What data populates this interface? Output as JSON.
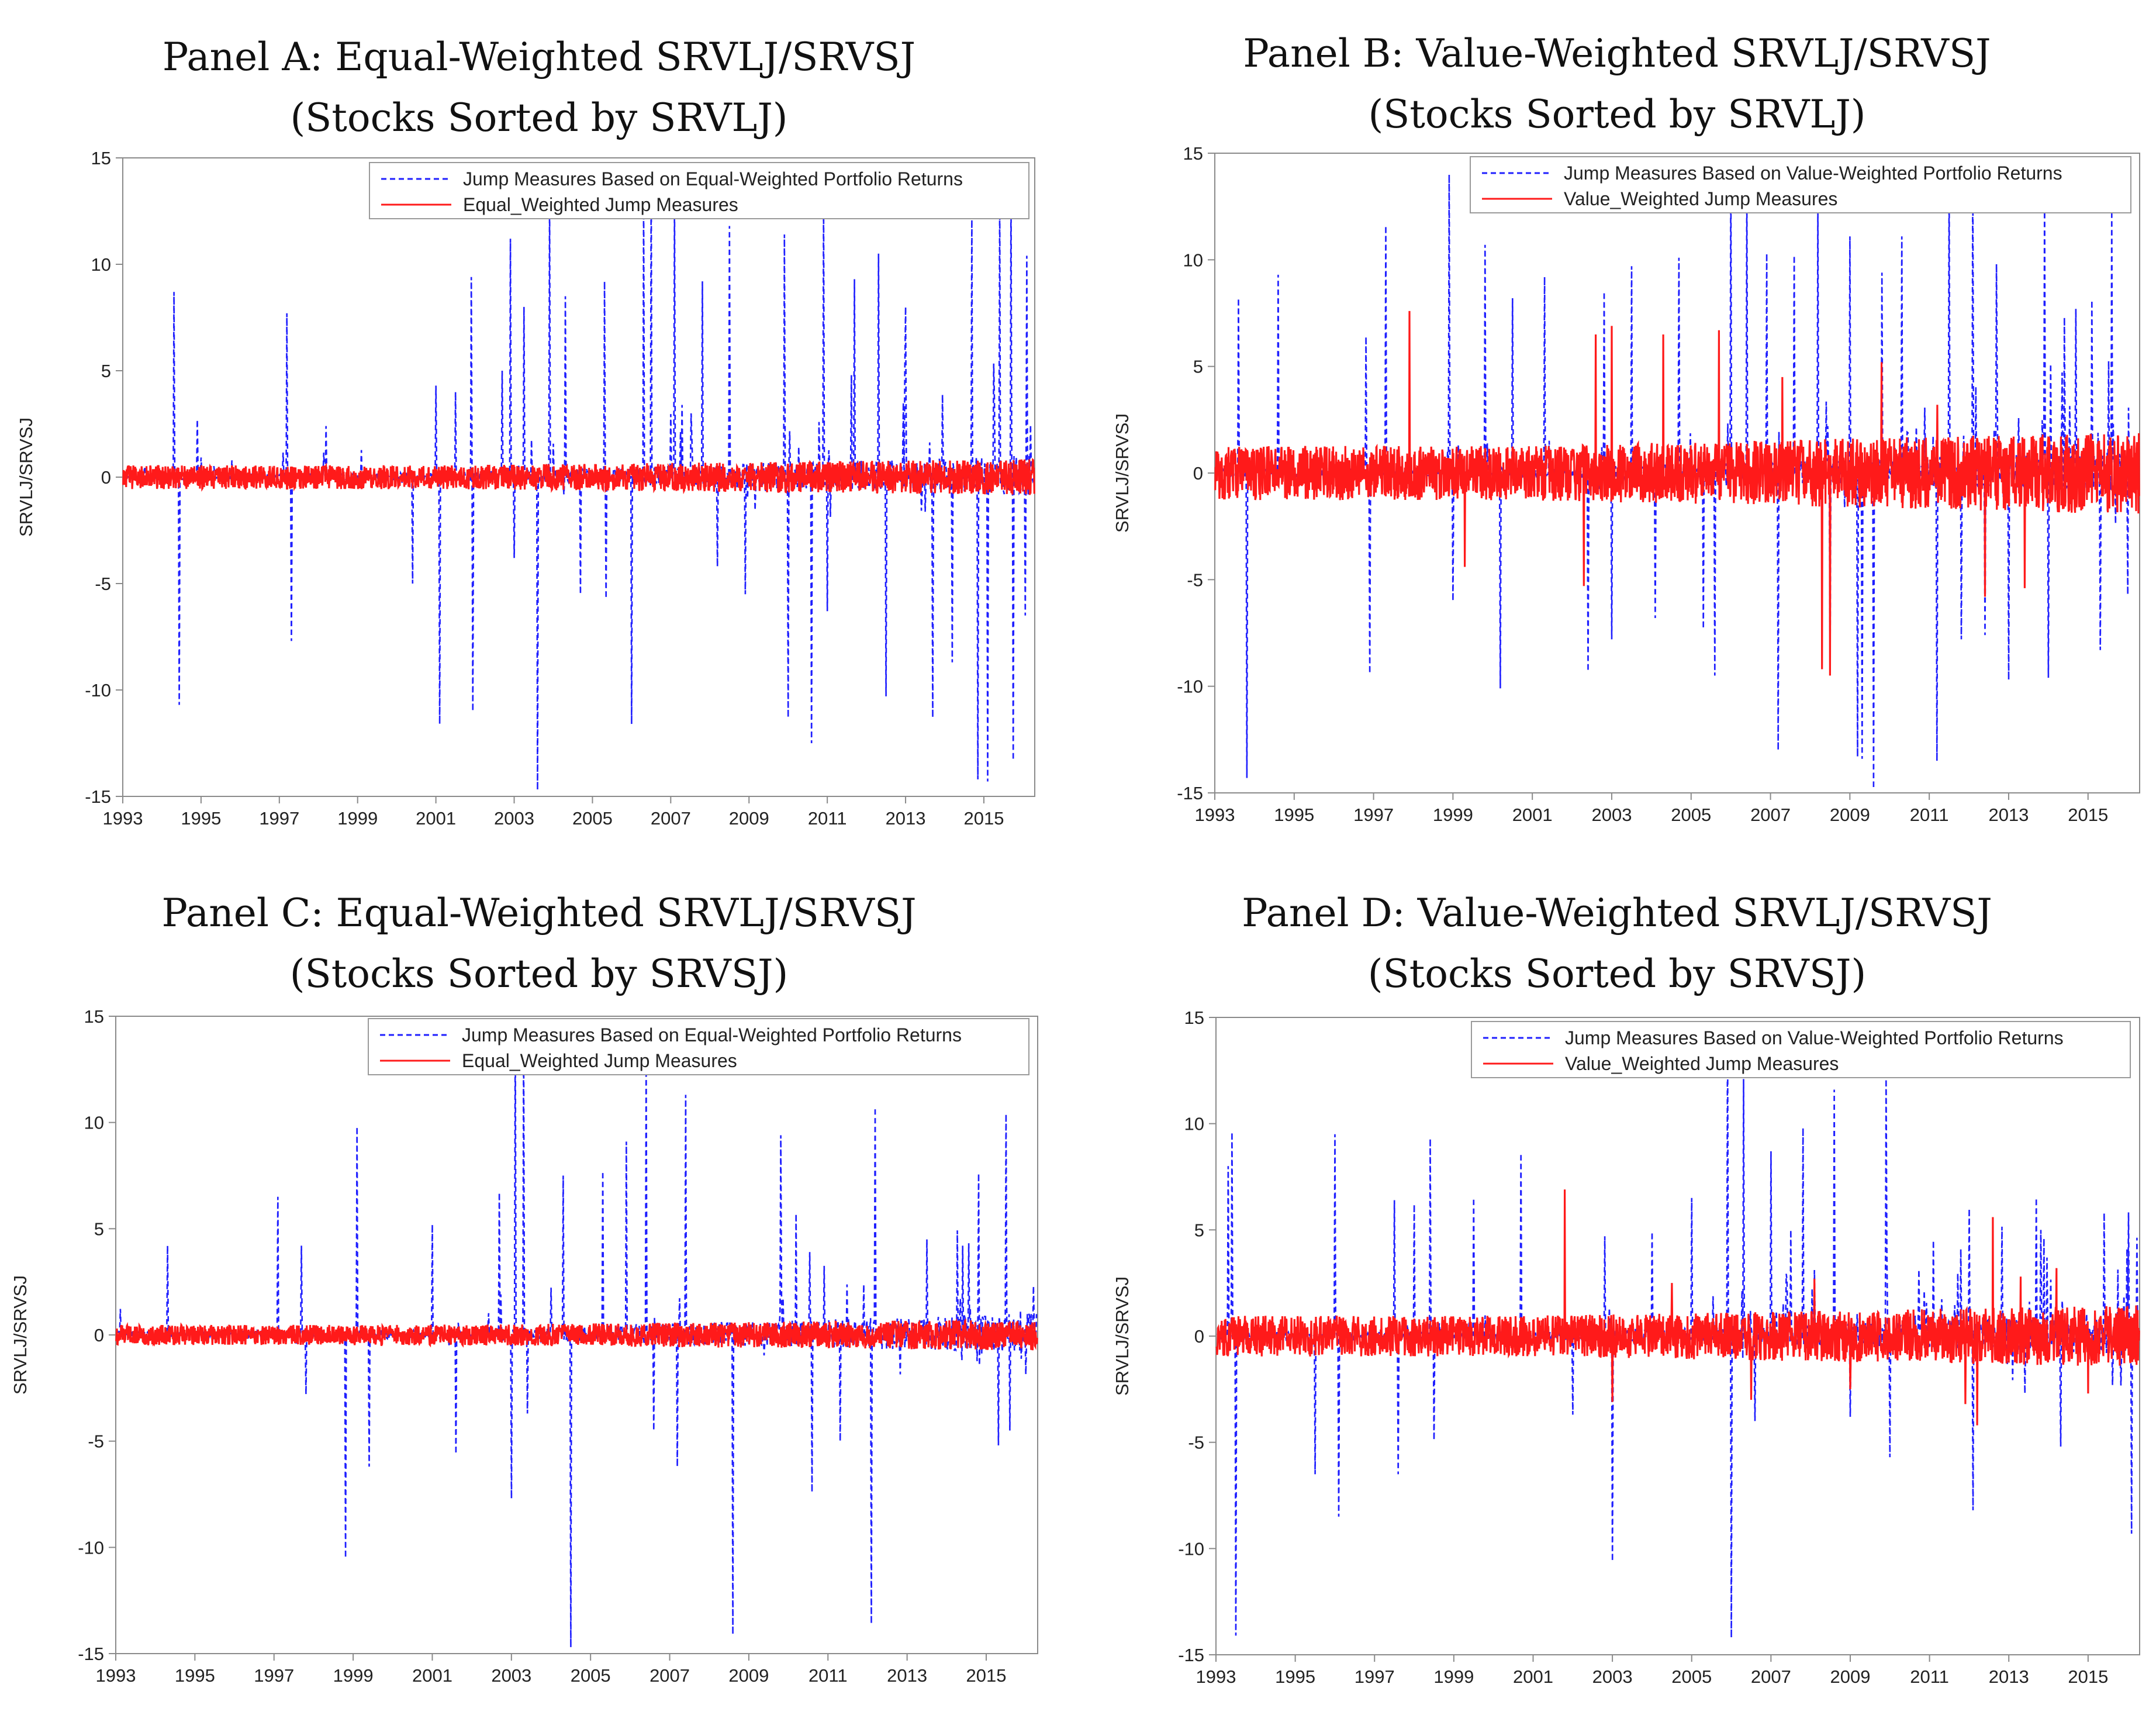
{
  "colors": {
    "blue": "#1f1fff",
    "red": "#ff1a1a",
    "axis": "#8a8a8a"
  },
  "chart_data": [
    {
      "panel": "A",
      "type": "line",
      "title": "Panel A: Equal-Weighted SRVLJ/SRVSJ",
      "subtitle": "(Stocks Sorted by SRVLJ)",
      "ylabel": "SRVLJ/SRVSJ",
      "xlabel": "",
      "ylim": [
        -15,
        15
      ],
      "xlim": [
        1993,
        2016.3
      ],
      "yticks": [
        "15",
        "10",
        "5",
        "0",
        "-5",
        "-10",
        "-15"
      ],
      "xticks": [
        "1993",
        "1995",
        "1997",
        "1999",
        "2001",
        "2003",
        "2005",
        "2007",
        "2009",
        "2011",
        "2013",
        "2015"
      ],
      "legend": [
        "Jump Measures Based on Equal-Weighted Portfolio Returns",
        "Equal_Weighted Jump Measures"
      ],
      "series": [
        {
          "name": "Jump Measures Based on Equal-Weighted Portfolio Returns",
          "style": "dashed",
          "color": "blue",
          "spikes": [
            [
              1994.3,
              8.7
            ],
            [
              1994.45,
              -10.7
            ],
            [
              1994.9,
              2.7
            ],
            [
              1997.2,
              7.7
            ],
            [
              1997.3,
              -7.7
            ],
            [
              1998.2,
              2.4
            ],
            [
              2000.4,
              -5
            ],
            [
              2001.0,
              4.3
            ],
            [
              2001.1,
              -11.6
            ],
            [
              2001.5,
              4
            ],
            [
              2001.9,
              9.4
            ],
            [
              2001.95,
              -11
            ],
            [
              2002.7,
              5
            ],
            [
              2002.9,
              11.2
            ],
            [
              2003.0,
              -3.8
            ],
            [
              2003.25,
              8
            ],
            [
              2003.6,
              -14.7
            ],
            [
              2003.9,
              13
            ],
            [
              2004.3,
              8.5
            ],
            [
              2004.7,
              -5.5
            ],
            [
              2005.3,
              9.2
            ],
            [
              2005.35,
              -5.7
            ],
            [
              2006.0,
              -11.6
            ],
            [
              2006.3,
              13.1
            ],
            [
              2006.5,
              14.5
            ],
            [
              2007.1,
              13
            ],
            [
              2007.8,
              9.2
            ],
            [
              2008.2,
              -4.2
            ],
            [
              2008.5,
              11.8
            ],
            [
              2008.9,
              -5.5
            ],
            [
              2009.9,
              11.4
            ],
            [
              2010.0,
              -11.3
            ],
            [
              2010.6,
              -12.5
            ],
            [
              2010.9,
              12.9
            ],
            [
              2011.0,
              -6.3
            ],
            [
              2011.7,
              9.3
            ],
            [
              2012.3,
              10.5
            ],
            [
              2012.5,
              -10.3
            ],
            [
              2013.0,
              8
            ],
            [
              2013.7,
              -11.3
            ],
            [
              2014.2,
              -8.7
            ],
            [
              2014.7,
              12.3
            ],
            [
              2014.85,
              -14.2
            ],
            [
              2015.1,
              -14.3
            ],
            [
              2015.4,
              13.1
            ],
            [
              2015.7,
              13.4
            ],
            [
              2015.75,
              -13.3
            ],
            [
              2016.1,
              10.4
            ],
            [
              2016.05,
              -6.5
            ]
          ]
        },
        {
          "name": "Equal_Weighted Jump Measures",
          "style": "solid",
          "color": "red",
          "band": 0.7
        }
      ]
    },
    {
      "panel": "B",
      "type": "line",
      "title": "Panel B: Value-Weighted SRVLJ/SRVSJ",
      "subtitle": "(Stocks Sorted by SRVLJ)",
      "ylabel": "SRVLJ/SRVSJ",
      "xlabel": "",
      "ylim": [
        -15,
        15
      ],
      "xlim": [
        1993,
        2016.3
      ],
      "yticks": [
        "15",
        "10",
        "5",
        "0",
        "-5",
        "-10",
        "-15"
      ],
      "xticks": [
        "1993",
        "1995",
        "1997",
        "1999",
        "2001",
        "2003",
        "2005",
        "2007",
        "2009",
        "2011",
        "2013",
        "2015"
      ],
      "legend": [
        "Jump Measures Based on Value-Weighted Portfolio Returns",
        "Value_Weighted Jump Measures"
      ],
      "series": [
        {
          "name": "Jump Measures Based on Value-Weighted Portfolio Returns",
          "style": "dashed",
          "color": "blue",
          "spikes": [
            [
              1993.6,
              8.2
            ],
            [
              1993.8,
              -14.3
            ],
            [
              1994.6,
              9.3
            ],
            [
              1996.8,
              6.4
            ],
            [
              1996.9,
              -9.4
            ],
            [
              1997.3,
              11.6
            ],
            [
              1998.9,
              14
            ],
            [
              1999.0,
              -6
            ],
            [
              1999.8,
              10.7
            ],
            [
              2000.2,
              -10.1
            ],
            [
              2000.5,
              8.2
            ],
            [
              2001.3,
              9.2
            ],
            [
              2002.4,
              -9.3
            ],
            [
              2002.8,
              8.5
            ],
            [
              2003.0,
              -7.8
            ],
            [
              2003.5,
              9.7
            ],
            [
              2004.1,
              -6.8
            ],
            [
              2004.7,
              10.1
            ],
            [
              2005.3,
              -7.3
            ],
            [
              2005.6,
              -9.5
            ],
            [
              2006.0,
              14.2
            ],
            [
              2006.4,
              13.2
            ],
            [
              2006.9,
              10.3
            ],
            [
              2007.2,
              -13
            ],
            [
              2007.6,
              10.2
            ],
            [
              2008.2,
              12.4
            ],
            [
              2008.5,
              -9
            ],
            [
              2009.0,
              11.1
            ],
            [
              2009.2,
              -13.3
            ],
            [
              2009.3,
              -13.4
            ],
            [
              2009.6,
              -14.8
            ],
            [
              2009.8,
              9.4
            ],
            [
              2010.3,
              11.1
            ],
            [
              2011.2,
              -13.5
            ],
            [
              2011.5,
              13.6
            ],
            [
              2011.8,
              -7.8
            ],
            [
              2012.1,
              14.3
            ],
            [
              2012.4,
              -7.6
            ],
            [
              2012.7,
              9.8
            ],
            [
              2013.0,
              -9.7
            ],
            [
              2013.9,
              13.1
            ],
            [
              2014.0,
              -9.6
            ],
            [
              2014.4,
              7.3
            ],
            [
              2014.7,
              7.7
            ],
            [
              2015.1,
              8.1
            ],
            [
              2015.3,
              -8.3
            ],
            [
              2015.6,
              12.3
            ],
            [
              2016.0,
              -5.7
            ]
          ]
        },
        {
          "name": "Value_Weighted Jump Measures",
          "style": "solid",
          "color": "red",
          "band": 1.6,
          "spikes": [
            [
              1997.9,
              7.6
            ],
            [
              1999.3,
              -4.4
            ],
            [
              2002.3,
              -5.3
            ],
            [
              2002.6,
              6.5
            ],
            [
              2003.0,
              6.9
            ],
            [
              2004.3,
              6.5
            ],
            [
              2005.7,
              6.7
            ],
            [
              2007.3,
              4.5
            ],
            [
              2008.3,
              -9.2
            ],
            [
              2008.5,
              -9.5
            ],
            [
              2009.8,
              5.2
            ],
            [
              2011.2,
              3.2
            ],
            [
              2012.4,
              -5.8
            ],
            [
              2013.4,
              -5.4
            ]
          ]
        }
      ]
    },
    {
      "panel": "C",
      "type": "line",
      "title": "Panel C: Equal-Weighted SRVLJ/SRVSJ",
      "subtitle": "(Stocks Sorted by SRVSJ)",
      "ylabel": "SRVLJ/SRVSJ",
      "xlabel": "",
      "ylim": [
        -15,
        15
      ],
      "xlim": [
        1993,
        2016.3
      ],
      "yticks": [
        "15",
        "10",
        "5",
        "0",
        "-5",
        "-10",
        "-15"
      ],
      "xticks": [
        "1993",
        "1995",
        "1997",
        "1999",
        "2001",
        "2003",
        "2005",
        "2007",
        "2009",
        "2011",
        "2013",
        "2015"
      ],
      "legend": [
        "Jump Measures Based on Equal-Weighted Portfolio Returns",
        "Equal_Weighted Jump Measures"
      ],
      "series": [
        {
          "name": "Jump Measures Based on Equal-Weighted Portfolio Returns",
          "style": "dashed",
          "color": "blue",
          "spikes": [
            [
              1994.3,
              4.2
            ],
            [
              1997.1,
              6.5
            ],
            [
              1997.7,
              4.2
            ],
            [
              1997.8,
              -2.8
            ],
            [
              1998.8,
              -10.5
            ],
            [
              1999.1,
              9.8
            ],
            [
              1999.4,
              -6.2
            ],
            [
              2001.0,
              5.2
            ],
            [
              2001.6,
              -5.6
            ],
            [
              2002.7,
              6.7
            ],
            [
              2003.0,
              -7.7
            ],
            [
              2003.1,
              14.6
            ],
            [
              2003.3,
              14.3
            ],
            [
              2003.4,
              -3.7
            ],
            [
              2004.3,
              7.5
            ],
            [
              2004.5,
              -14.7
            ],
            [
              2005.3,
              7.7
            ],
            [
              2005.9,
              9.1
            ],
            [
              2006.4,
              12.9
            ],
            [
              2006.6,
              -4.5
            ],
            [
              2007.2,
              -6.2
            ],
            [
              2007.4,
              11.3
            ],
            [
              2008.6,
              -14.1
            ],
            [
              2009.8,
              9.4
            ],
            [
              2010.2,
              5.7
            ],
            [
              2010.6,
              -7.4
            ],
            [
              2011.3,
              -5
            ],
            [
              2012.2,
              10.7
            ],
            [
              2012.1,
              -13.6
            ],
            [
              2013.5,
              4.5
            ],
            [
              2014.4,
              4.2
            ],
            [
              2014.8,
              7.6
            ],
            [
              2015.3,
              -5.2
            ],
            [
              2015.5,
              10.4
            ],
            [
              2015.6,
              -4.5
            ],
            [
              2016.2,
              2.3
            ]
          ]
        },
        {
          "name": "Equal_Weighted Jump Measures",
          "style": "solid",
          "color": "red",
          "band": 0.6
        }
      ]
    },
    {
      "panel": "D",
      "type": "line",
      "title": "Panel D: Value-Weighted SRVLJ/SRVSJ",
      "subtitle": "(Stocks Sorted by SRVSJ)",
      "ylabel": "SRVLJ/SRVSJ",
      "xlabel": "",
      "ylim": [
        -15,
        15
      ],
      "xlim": [
        1993,
        2016.3
      ],
      "yticks": [
        "15",
        "10",
        "5",
        "0",
        "-5",
        "-10",
        "-15"
      ],
      "xticks": [
        "1993",
        "1995",
        "1997",
        "1999",
        "2001",
        "2003",
        "2005",
        "2007",
        "2009",
        "2011",
        "2013",
        "2015"
      ],
      "legend": [
        "Jump Measures Based on Value-Weighted Portfolio Returns",
        "Value_Weighted Jump Measures"
      ],
      "series": [
        {
          "name": "Jump Measures Based on Value-Weighted Portfolio Returns",
          "style": "dashed",
          "color": "blue",
          "spikes": [
            [
              1993.3,
              8
            ],
            [
              1993.4,
              9.6
            ],
            [
              1993.5,
              -14.1
            ],
            [
              1995.5,
              -6.5
            ],
            [
              1996.0,
              9.5
            ],
            [
              1996.1,
              -8.5
            ],
            [
              1997.5,
              6.4
            ],
            [
              1997.6,
              -6.5
            ],
            [
              1998.0,
              6.2
            ],
            [
              1998.4,
              9.3
            ],
            [
              1998.5,
              -4.9
            ],
            [
              1999.5,
              6.5
            ],
            [
              2000.7,
              8.6
            ],
            [
              2002.0,
              -3.7
            ],
            [
              2002.8,
              4.7
            ],
            [
              2003.0,
              -10.6
            ],
            [
              2004.0,
              4.9
            ],
            [
              2005.0,
              6.5
            ],
            [
              2005.9,
              14.8
            ],
            [
              2006.0,
              -14.2
            ],
            [
              2006.3,
              12.1
            ],
            [
              2006.6,
              -4
            ],
            [
              2007.0,
              8.7
            ],
            [
              2007.5,
              5
            ],
            [
              2007.8,
              9.8
            ],
            [
              2008.6,
              11.6
            ],
            [
              2009.0,
              -3.8
            ],
            [
              2009.9,
              12.1
            ],
            [
              2010.0,
              -5.7
            ],
            [
              2011.1,
              4.5
            ],
            [
              2012.0,
              6
            ],
            [
              2012.1,
              -8.2
            ],
            [
              2013.4,
              -2.7
            ],
            [
              2013.7,
              6.5
            ],
            [
              2014.3,
              -5.2
            ],
            [
              2015.4,
              5.8
            ],
            [
              2015.9,
              1.9
            ],
            [
              2016.1,
              -9.3
            ]
          ]
        },
        {
          "name": "Value_Weighted Jump Measures",
          "style": "solid",
          "color": "red",
          "band": 1.2,
          "spikes": [
            [
              2001.8,
              6.9
            ],
            [
              2003.0,
              -3.1
            ],
            [
              2004.5,
              2.5
            ],
            [
              2006.5,
              -3
            ],
            [
              2008.1,
              2.7
            ],
            [
              2009.0,
              -2.5
            ],
            [
              2011.9,
              -3.2
            ],
            [
              2012.2,
              -4.2
            ],
            [
              2012.6,
              5.6
            ],
            [
              2013.3,
              2.8
            ],
            [
              2014.2,
              3.2
            ],
            [
              2015.0,
              -2.7
            ]
          ]
        }
      ]
    }
  ]
}
